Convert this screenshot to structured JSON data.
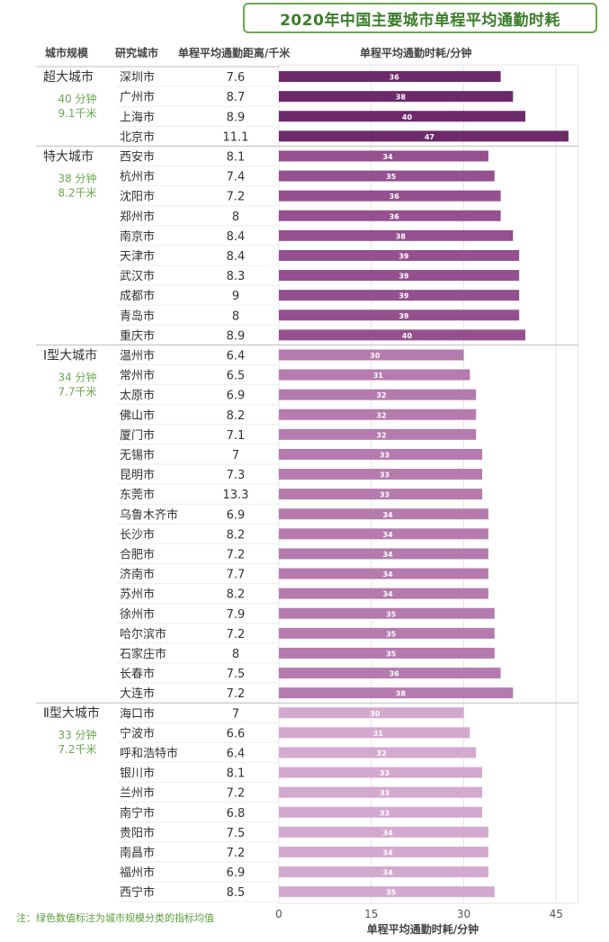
{
  "title": "2020年中国主要城市单程平均通勤时耗",
  "headers": {
    "category": "城市规模",
    "city": "研究城市",
    "distance": "单程平均通勤距离/千米",
    "time": "单程平均通勤时耗/分钟"
  },
  "groups": [
    {
      "name": "超大城市",
      "avg_time": "40 分钟",
      "avg_distance": "9.1千米"
    },
    {
      "name": "特大城市",
      "avg_time": "38 分钟",
      "avg_distance": "8.2千米"
    },
    {
      "name": "Ⅰ型大城市",
      "avg_time": "34 分钟",
      "avg_distance": "7.7千米"
    },
    {
      "name": "Ⅱ型大城市",
      "avg_time": "33 分钟",
      "avg_distance": "7.2千米"
    }
  ],
  "note": "注：绿色数值标注为城市规模分类的指标均值",
  "colors": {
    "group_0": "#6d2a6b",
    "group_1": "#94508f",
    "group_2": "#b57bae",
    "group_3": "#d4a9cf",
    "accent_green": "#6aa84f"
  },
  "chart_data": {
    "type": "bar",
    "orientation": "horizontal",
    "title": "2020年中国主要城市单程平均通勤时耗",
    "xlabel": "单程平均通勤时耗/分钟",
    "xlim": [
      0,
      50
    ],
    "xticks": [
      0,
      15,
      30,
      45
    ],
    "grid": true,
    "rows": [
      {
        "group": 0,
        "city": "深圳市",
        "distance": "7.6",
        "time": 36
      },
      {
        "group": 0,
        "city": "广州市",
        "distance": "8.7",
        "time": 38
      },
      {
        "group": 0,
        "city": "上海市",
        "distance": "8.9",
        "time": 40
      },
      {
        "group": 0,
        "city": "北京市",
        "distance": "11.1",
        "time": 47
      },
      {
        "group": 1,
        "city": "西安市",
        "distance": "8.1",
        "time": 34
      },
      {
        "group": 1,
        "city": "杭州市",
        "distance": "7.4",
        "time": 35
      },
      {
        "group": 1,
        "city": "沈阳市",
        "distance": "7.2",
        "time": 36
      },
      {
        "group": 1,
        "city": "郑州市",
        "distance": "8",
        "time": 36
      },
      {
        "group": 1,
        "city": "南京市",
        "distance": "8.4",
        "time": 38
      },
      {
        "group": 1,
        "city": "天津市",
        "distance": "8.4",
        "time": 39
      },
      {
        "group": 1,
        "city": "武汉市",
        "distance": "8.3",
        "time": 39
      },
      {
        "group": 1,
        "city": "成都市",
        "distance": "9",
        "time": 39
      },
      {
        "group": 1,
        "city": "青岛市",
        "distance": "8",
        "time": 39
      },
      {
        "group": 1,
        "city": "重庆市",
        "distance": "8.9",
        "time": 40
      },
      {
        "group": 2,
        "city": "温州市",
        "distance": "6.4",
        "time": 30
      },
      {
        "group": 2,
        "city": "常州市",
        "distance": "6.5",
        "time": 31
      },
      {
        "group": 2,
        "city": "太原市",
        "distance": "6.9",
        "time": 32
      },
      {
        "group": 2,
        "city": "佛山市",
        "distance": "8.2",
        "time": 32
      },
      {
        "group": 2,
        "city": "厦门市",
        "distance": "7.1",
        "time": 32
      },
      {
        "group": 2,
        "city": "无锡市",
        "distance": "7",
        "time": 33
      },
      {
        "group": 2,
        "city": "昆明市",
        "distance": "7.3",
        "time": 33
      },
      {
        "group": 2,
        "city": "东莞市",
        "distance": "13.3",
        "time": 33
      },
      {
        "group": 2,
        "city": "乌鲁木齐市",
        "distance": "6.9",
        "time": 34
      },
      {
        "group": 2,
        "city": "长沙市",
        "distance": "8.2",
        "time": 34
      },
      {
        "group": 2,
        "city": "合肥市",
        "distance": "7.2",
        "time": 34
      },
      {
        "group": 2,
        "city": "济南市",
        "distance": "7.7",
        "time": 34
      },
      {
        "group": 2,
        "city": "苏州市",
        "distance": "8.2",
        "time": 34
      },
      {
        "group": 2,
        "city": "徐州市",
        "distance": "7.9",
        "time": 35
      },
      {
        "group": 2,
        "city": "哈尔滨市",
        "distance": "7.2",
        "time": 35
      },
      {
        "group": 2,
        "city": "石家庄市",
        "distance": "8",
        "time": 35
      },
      {
        "group": 2,
        "city": "长春市",
        "distance": "7.5",
        "time": 36
      },
      {
        "group": 2,
        "city": "大连市",
        "distance": "7.2",
        "time": 38
      },
      {
        "group": 3,
        "city": "海口市",
        "distance": "7",
        "time": 30
      },
      {
        "group": 3,
        "city": "宁波市",
        "distance": "6.6",
        "time": 31
      },
      {
        "group": 3,
        "city": "呼和浩特市",
        "distance": "6.4",
        "time": 32
      },
      {
        "group": 3,
        "city": "银川市",
        "distance": "8.1",
        "time": 33
      },
      {
        "group": 3,
        "city": "兰州市",
        "distance": "7.2",
        "time": 33
      },
      {
        "group": 3,
        "city": "南宁市",
        "distance": "6.8",
        "time": 33
      },
      {
        "group": 3,
        "city": "贵阳市",
        "distance": "7.5",
        "time": 34
      },
      {
        "group": 3,
        "city": "南昌市",
        "distance": "7.2",
        "time": 34
      },
      {
        "group": 3,
        "city": "福州市",
        "distance": "6.9",
        "time": 34
      },
      {
        "group": 3,
        "city": "西宁市",
        "distance": "8.5",
        "time": 35
      }
    ]
  }
}
